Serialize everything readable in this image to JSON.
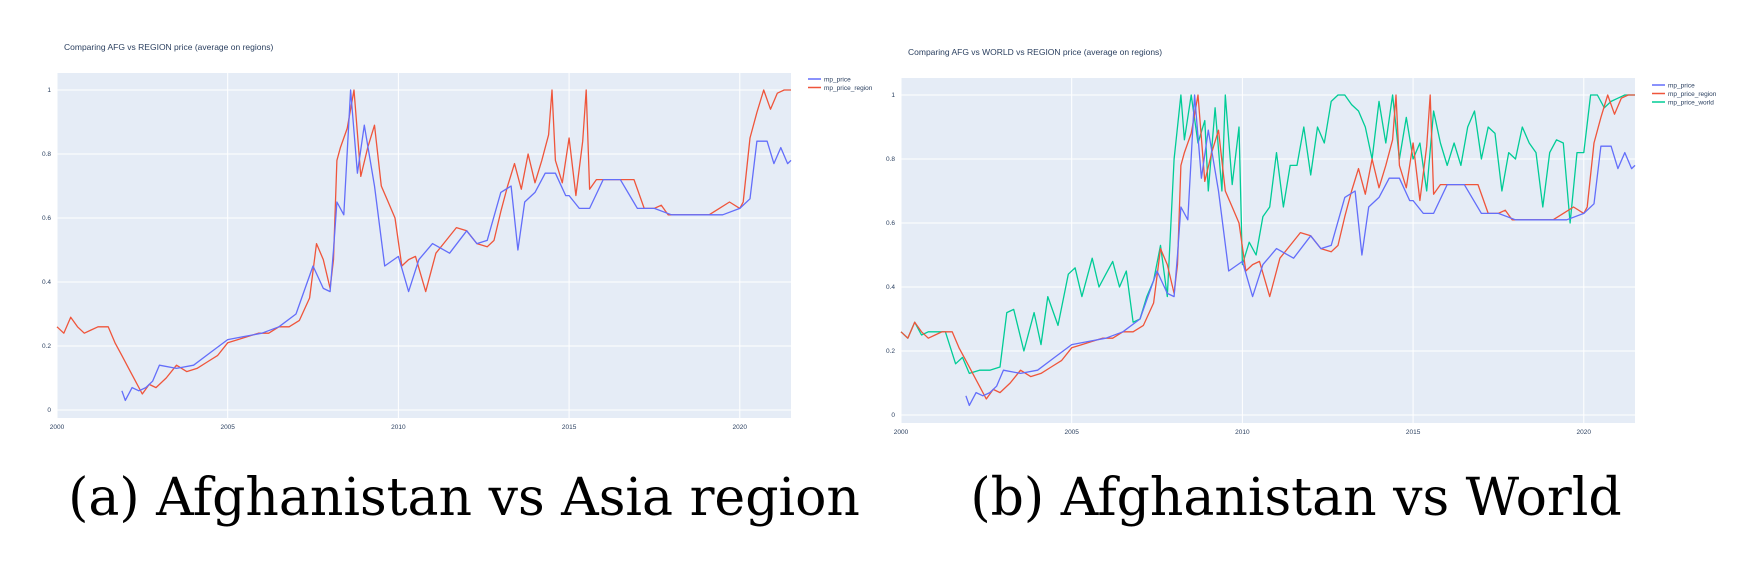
{
  "captions": [
    "(a) Afghanistan vs Asia region",
    "(b) Afghanistan vs World"
  ],
  "colors": {
    "mp_price": "#636efa",
    "mp_price_region": "#ef553b",
    "mp_price_world": "#00cc96"
  },
  "chart_data": [
    {
      "type": "line",
      "title": "Comparing AFG vs REGION price (average on regions)",
      "xlabel": "",
      "ylabel": "",
      "xlim": [
        2000,
        2021.5
      ],
      "ylim": [
        0,
        1
      ],
      "x_ticks": [
        "2000",
        "2005",
        "2010",
        "2015",
        "2020"
      ],
      "y_ticks": [
        "0",
        "0.2",
        "0.4",
        "0.6",
        "0.8",
        "1"
      ],
      "grid": true,
      "legend_position": "top-right outside",
      "series": [
        {
          "name": "mp_price",
          "color": "#636efa",
          "x": [
            2001.9,
            2002.0,
            2002.2,
            2002.4,
            2002.6,
            2002.8,
            2003.0,
            2003.5,
            2004.0,
            2004.5,
            2005.0,
            2005.5,
            2006.0,
            2006.5,
            2007.0,
            2007.5,
            2007.8,
            2008.0,
            2008.1,
            2008.2,
            2008.4,
            2008.6,
            2008.8,
            2009.0,
            2009.3,
            2009.6,
            2010.0,
            2010.3,
            2010.6,
            2011.0,
            2011.5,
            2012.0,
            2012.3,
            2012.6,
            2013.0,
            2013.3,
            2013.5,
            2013.7,
            2014.0,
            2014.3,
            2014.6,
            2014.9,
            2015.0,
            2015.3,
            2015.6,
            2016.0,
            2016.5,
            2017.0,
            2017.5,
            2018.0,
            2018.5,
            2019.0,
            2019.5,
            2020.0,
            2020.3,
            2020.5,
            2020.8,
            2021.0,
            2021.2,
            2021.4,
            2021.5
          ],
          "y": [
            0.06,
            0.03,
            0.07,
            0.06,
            0.07,
            0.09,
            0.14,
            0.13,
            0.14,
            0.18,
            0.22,
            0.23,
            0.24,
            0.26,
            0.3,
            0.45,
            0.38,
            0.37,
            0.5,
            0.65,
            0.61,
            1.0,
            0.74,
            0.89,
            0.7,
            0.45,
            0.48,
            0.37,
            0.47,
            0.52,
            0.49,
            0.56,
            0.52,
            0.53,
            0.68,
            0.7,
            0.5,
            0.65,
            0.68,
            0.74,
            0.74,
            0.67,
            0.67,
            0.63,
            0.63,
            0.72,
            0.72,
            0.63,
            0.63,
            0.61,
            0.61,
            0.61,
            0.61,
            0.63,
            0.66,
            0.84,
            0.84,
            0.77,
            0.82,
            0.77,
            0.78
          ]
        },
        {
          "name": "mp_price_region",
          "color": "#ef553b",
          "x": [
            2000.0,
            2000.2,
            2000.4,
            2000.6,
            2000.8,
            2001.0,
            2001.2,
            2001.5,
            2001.7,
            2001.9,
            2002.1,
            2002.3,
            2002.5,
            2002.7,
            2002.9,
            2003.2,
            2003.5,
            2003.8,
            2004.1,
            2004.4,
            2004.7,
            2005.0,
            2005.3,
            2005.6,
            2005.9,
            2006.2,
            2006.5,
            2006.8,
            2007.1,
            2007.4,
            2007.6,
            2007.8,
            2008.0,
            2008.1,
            2008.2,
            2008.3,
            2008.5,
            2008.7,
            2008.9,
            2009.1,
            2009.3,
            2009.5,
            2009.7,
            2009.9,
            2010.1,
            2010.3,
            2010.5,
            2010.8,
            2011.1,
            2011.4,
            2011.7,
            2012.0,
            2012.3,
            2012.6,
            2012.8,
            2013.0,
            2013.2,
            2013.4,
            2013.6,
            2013.8,
            2014.0,
            2014.2,
            2014.4,
            2014.5,
            2014.6,
            2014.8,
            2015.0,
            2015.2,
            2015.4,
            2015.5,
            2015.6,
            2015.8,
            2016.0,
            2016.3,
            2016.6,
            2016.9,
            2017.2,
            2017.5,
            2017.7,
            2017.9,
            2018.2,
            2018.5,
            2018.8,
            2019.1,
            2019.4,
            2019.7,
            2020.0,
            2020.1,
            2020.3,
            2020.5,
            2020.7,
            2020.9,
            2021.1,
            2021.3,
            2021.5
          ],
          "y": [
            0.26,
            0.24,
            0.29,
            0.26,
            0.24,
            0.25,
            0.26,
            0.26,
            0.21,
            0.17,
            0.13,
            0.09,
            0.05,
            0.08,
            0.07,
            0.1,
            0.14,
            0.12,
            0.13,
            0.15,
            0.17,
            0.21,
            0.22,
            0.23,
            0.24,
            0.24,
            0.26,
            0.26,
            0.28,
            0.35,
            0.52,
            0.47,
            0.38,
            0.47,
            0.78,
            0.82,
            0.88,
            1.0,
            0.73,
            0.82,
            0.89,
            0.7,
            0.65,
            0.6,
            0.45,
            0.47,
            0.48,
            0.37,
            0.49,
            0.53,
            0.57,
            0.56,
            0.52,
            0.51,
            0.53,
            0.62,
            0.7,
            0.77,
            0.69,
            0.8,
            0.71,
            0.78,
            0.86,
            1.0,
            0.78,
            0.71,
            0.85,
            0.67,
            0.84,
            1.0,
            0.69,
            0.72,
            0.72,
            0.72,
            0.72,
            0.72,
            0.63,
            0.63,
            0.64,
            0.61,
            0.61,
            0.61,
            0.61,
            0.61,
            0.63,
            0.65,
            0.63,
            0.65,
            0.85,
            0.93,
            1.0,
            0.94,
            0.99,
            1.0,
            1.0
          ]
        }
      ]
    },
    {
      "type": "line",
      "title": "Comparing AFG vs WORLD vs REGION price (average on regions)",
      "xlabel": "",
      "ylabel": "",
      "xlim": [
        2000,
        2021.5
      ],
      "ylim": [
        0,
        1
      ],
      "x_ticks": [
        "2000",
        "2005",
        "2010",
        "2015",
        "2020"
      ],
      "y_ticks": [
        "0",
        "0.2",
        "0.4",
        "0.6",
        "0.8",
        "1"
      ],
      "grid": true,
      "legend_position": "top-right outside",
      "series": [
        {
          "name": "mp_price",
          "color": "#636efa",
          "x": [
            2001.9,
            2002.0,
            2002.2,
            2002.4,
            2002.6,
            2002.8,
            2003.0,
            2003.5,
            2004.0,
            2004.5,
            2005.0,
            2005.5,
            2006.0,
            2006.5,
            2007.0,
            2007.5,
            2007.8,
            2008.0,
            2008.1,
            2008.2,
            2008.4,
            2008.6,
            2008.8,
            2009.0,
            2009.3,
            2009.6,
            2010.0,
            2010.3,
            2010.6,
            2011.0,
            2011.5,
            2012.0,
            2012.3,
            2012.6,
            2013.0,
            2013.3,
            2013.5,
            2013.7,
            2014.0,
            2014.3,
            2014.6,
            2014.9,
            2015.0,
            2015.3,
            2015.6,
            2016.0,
            2016.5,
            2017.0,
            2017.5,
            2018.0,
            2018.5,
            2019.0,
            2019.5,
            2020.0,
            2020.3,
            2020.5,
            2020.8,
            2021.0,
            2021.2,
            2021.4,
            2021.5
          ],
          "y": [
            0.06,
            0.03,
            0.07,
            0.06,
            0.07,
            0.09,
            0.14,
            0.13,
            0.14,
            0.18,
            0.22,
            0.23,
            0.24,
            0.26,
            0.3,
            0.45,
            0.38,
            0.37,
            0.5,
            0.65,
            0.61,
            1.0,
            0.74,
            0.89,
            0.7,
            0.45,
            0.48,
            0.37,
            0.47,
            0.52,
            0.49,
            0.56,
            0.52,
            0.53,
            0.68,
            0.7,
            0.5,
            0.65,
            0.68,
            0.74,
            0.74,
            0.67,
            0.67,
            0.63,
            0.63,
            0.72,
            0.72,
            0.63,
            0.63,
            0.61,
            0.61,
            0.61,
            0.61,
            0.63,
            0.66,
            0.84,
            0.84,
            0.77,
            0.82,
            0.77,
            0.78
          ]
        },
        {
          "name": "mp_price_region",
          "color": "#ef553b",
          "x": [
            2000.0,
            2000.2,
            2000.4,
            2000.6,
            2000.8,
            2001.0,
            2001.2,
            2001.5,
            2001.7,
            2001.9,
            2002.1,
            2002.3,
            2002.5,
            2002.7,
            2002.9,
            2003.2,
            2003.5,
            2003.8,
            2004.1,
            2004.4,
            2004.7,
            2005.0,
            2005.3,
            2005.6,
            2005.9,
            2006.2,
            2006.5,
            2006.8,
            2007.1,
            2007.4,
            2007.6,
            2007.8,
            2008.0,
            2008.1,
            2008.2,
            2008.3,
            2008.5,
            2008.7,
            2008.9,
            2009.1,
            2009.3,
            2009.5,
            2009.7,
            2009.9,
            2010.1,
            2010.3,
            2010.5,
            2010.8,
            2011.1,
            2011.4,
            2011.7,
            2012.0,
            2012.3,
            2012.6,
            2012.8,
            2013.0,
            2013.2,
            2013.4,
            2013.6,
            2013.8,
            2014.0,
            2014.2,
            2014.4,
            2014.5,
            2014.6,
            2014.8,
            2015.0,
            2015.2,
            2015.4,
            2015.5,
            2015.6,
            2015.8,
            2016.0,
            2016.3,
            2016.6,
            2016.9,
            2017.2,
            2017.5,
            2017.7,
            2017.9,
            2018.2,
            2018.5,
            2018.8,
            2019.1,
            2019.4,
            2019.7,
            2020.0,
            2020.1,
            2020.3,
            2020.5,
            2020.7,
            2020.9,
            2021.1,
            2021.3,
            2021.5
          ],
          "y": [
            0.26,
            0.24,
            0.29,
            0.26,
            0.24,
            0.25,
            0.26,
            0.26,
            0.21,
            0.17,
            0.13,
            0.09,
            0.05,
            0.08,
            0.07,
            0.1,
            0.14,
            0.12,
            0.13,
            0.15,
            0.17,
            0.21,
            0.22,
            0.23,
            0.24,
            0.24,
            0.26,
            0.26,
            0.28,
            0.35,
            0.52,
            0.47,
            0.38,
            0.47,
            0.78,
            0.82,
            0.88,
            1.0,
            0.73,
            0.82,
            0.89,
            0.7,
            0.65,
            0.6,
            0.45,
            0.47,
            0.48,
            0.37,
            0.49,
            0.53,
            0.57,
            0.56,
            0.52,
            0.51,
            0.53,
            0.62,
            0.7,
            0.77,
            0.69,
            0.8,
            0.71,
            0.78,
            0.86,
            1.0,
            0.78,
            0.71,
            0.85,
            0.67,
            0.84,
            1.0,
            0.69,
            0.72,
            0.72,
            0.72,
            0.72,
            0.72,
            0.63,
            0.63,
            0.64,
            0.61,
            0.61,
            0.61,
            0.61,
            0.61,
            0.63,
            0.65,
            0.63,
            0.65,
            0.85,
            0.93,
            1.0,
            0.94,
            0.99,
            1.0,
            1.0
          ]
        },
        {
          "name": "mp_price_world",
          "color": "#00cc96",
          "x": [
            2000.0,
            2000.2,
            2000.4,
            2000.6,
            2000.8,
            2001.0,
            2001.3,
            2001.6,
            2001.8,
            2002.0,
            2002.3,
            2002.6,
            2002.9,
            2003.1,
            2003.3,
            2003.6,
            2003.9,
            2004.1,
            2004.3,
            2004.6,
            2004.9,
            2005.1,
            2005.3,
            2005.6,
            2005.8,
            2006.0,
            2006.2,
            2006.4,
            2006.6,
            2006.8,
            2007.0,
            2007.2,
            2007.4,
            2007.6,
            2007.8,
            2008.0,
            2008.2,
            2008.3,
            2008.5,
            2008.7,
            2008.9,
            2009.0,
            2009.2,
            2009.4,
            2009.5,
            2009.7,
            2009.9,
            2010.0,
            2010.2,
            2010.4,
            2010.6,
            2010.8,
            2011.0,
            2011.2,
            2011.4,
            2011.6,
            2011.8,
            2012.0,
            2012.2,
            2012.4,
            2012.6,
            2012.8,
            2013.0,
            2013.2,
            2013.4,
            2013.6,
            2013.8,
            2014.0,
            2014.2,
            2014.4,
            2014.6,
            2014.8,
            2015.0,
            2015.2,
            2015.4,
            2015.6,
            2015.8,
            2016.0,
            2016.2,
            2016.4,
            2016.6,
            2016.8,
            2017.0,
            2017.2,
            2017.4,
            2017.6,
            2017.8,
            2018.0,
            2018.2,
            2018.4,
            2018.6,
            2018.8,
            2019.0,
            2019.2,
            2019.4,
            2019.6,
            2019.8,
            2020.0,
            2020.2,
            2020.4,
            2020.6,
            2020.8,
            2021.0,
            2021.2,
            2021.5
          ],
          "y": [
            0.26,
            0.24,
            0.29,
            0.25,
            0.26,
            0.26,
            0.26,
            0.16,
            0.18,
            0.13,
            0.14,
            0.14,
            0.15,
            0.32,
            0.33,
            0.2,
            0.32,
            0.22,
            0.37,
            0.28,
            0.44,
            0.46,
            0.37,
            0.49,
            0.4,
            0.44,
            0.48,
            0.4,
            0.45,
            0.29,
            0.3,
            0.37,
            0.42,
            0.53,
            0.37,
            0.8,
            1.0,
            0.86,
            1.0,
            0.85,
            0.92,
            0.7,
            0.96,
            0.7,
            1.0,
            0.72,
            0.9,
            0.47,
            0.54,
            0.5,
            0.62,
            0.65,
            0.82,
            0.65,
            0.78,
            0.78,
            0.9,
            0.75,
            0.9,
            0.85,
            0.98,
            1.0,
            1.0,
            0.97,
            0.95,
            0.9,
            0.8,
            0.98,
            0.85,
            1.0,
            0.8,
            0.93,
            0.8,
            0.85,
            0.7,
            0.95,
            0.85,
            0.78,
            0.85,
            0.78,
            0.9,
            0.95,
            0.8,
            0.9,
            0.88,
            0.7,
            0.82,
            0.8,
            0.9,
            0.85,
            0.82,
            0.65,
            0.82,
            0.86,
            0.85,
            0.6,
            0.82,
            0.82,
            1.0,
            1.0,
            0.96,
            0.98,
            0.99,
            1.0,
            1.0
          ]
        }
      ]
    }
  ]
}
